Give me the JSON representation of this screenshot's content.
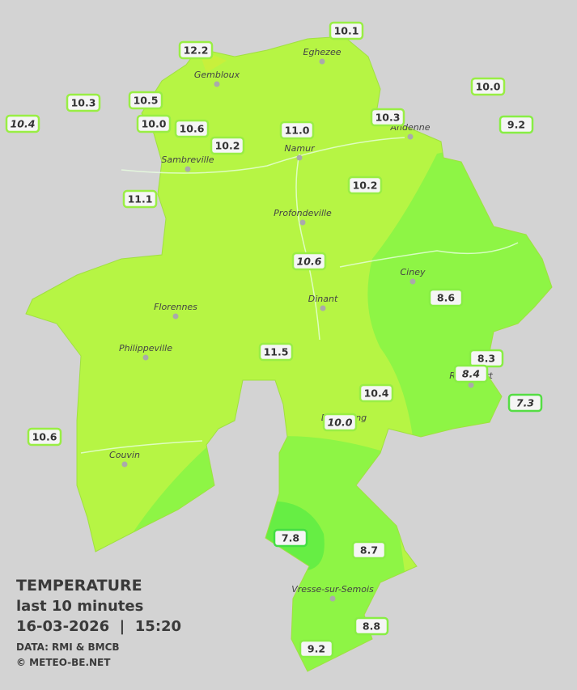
{
  "legend": {
    "title": "TEMPERATURE",
    "period": "last 10 minutes",
    "timestamp": "16-03-2026  |  15:20",
    "source": "DATA: RMI & BMCB",
    "copyright": "© METEO-BE.NET"
  },
  "towns": [
    "Eghezee",
    "Gembloux",
    "Andenne",
    "Namur",
    "Sambreville",
    "Profondeville",
    "Ciney",
    "Dinant",
    "Florennes",
    "Philippeville",
    "Beauraing",
    "Rochefort",
    "Couvin",
    "Vresse-sur-Semois"
  ],
  "stations": [
    {
      "value": "10.1",
      "italic": false,
      "color": "#99ee44"
    },
    {
      "value": "12.2",
      "italic": false,
      "color": "#99ee44"
    },
    {
      "value": "10.0",
      "italic": false,
      "color": "#99ee44"
    },
    {
      "value": "10.3",
      "italic": false,
      "color": "#99ee44"
    },
    {
      "value": "10.5",
      "italic": false,
      "color": "#99ee44"
    },
    {
      "value": "10.4",
      "italic": true,
      "color": "#99ee44"
    },
    {
      "value": "10.0",
      "italic": false,
      "color": "#99ee44"
    },
    {
      "value": "10.6",
      "italic": false,
      "color": "#99ee44"
    },
    {
      "value": "11.0",
      "italic": false,
      "color": "#99ee44"
    },
    {
      "value": "10.3",
      "italic": false,
      "color": "#99ee44"
    },
    {
      "value": "9.2",
      "italic": false,
      "color": "#88ee44"
    },
    {
      "value": "10.2",
      "italic": false,
      "color": "#99ee44"
    },
    {
      "value": "11.1",
      "italic": false,
      "color": "#99ee44"
    },
    {
      "value": "10.2",
      "italic": false,
      "color": "#99ee44"
    },
    {
      "value": "10.6",
      "italic": true,
      "color": "#99ee44"
    },
    {
      "value": "8.6",
      "italic": false,
      "color": "#88ee44"
    },
    {
      "value": "11.5",
      "italic": false,
      "color": "#99ee44"
    },
    {
      "value": "8.3",
      "italic": false,
      "color": "#88ee44"
    },
    {
      "value": "8.4",
      "italic": true,
      "color": "#88ee44"
    },
    {
      "value": "10.4",
      "italic": false,
      "color": "#99ee44"
    },
    {
      "value": "7.3",
      "italic": true,
      "color": "#55dd44"
    },
    {
      "value": "10.0",
      "italic": true,
      "color": "#99ee44"
    },
    {
      "value": "10.6",
      "italic": false,
      "color": "#99ee44"
    },
    {
      "value": "7.8",
      "italic": false,
      "color": "#44dd44"
    },
    {
      "value": "8.7",
      "italic": false,
      "color": "#88ee44"
    },
    {
      "value": "8.8",
      "italic": false,
      "color": "#88ee44"
    },
    {
      "value": "9.2",
      "italic": false,
      "color": "#88ee44"
    }
  ]
}
